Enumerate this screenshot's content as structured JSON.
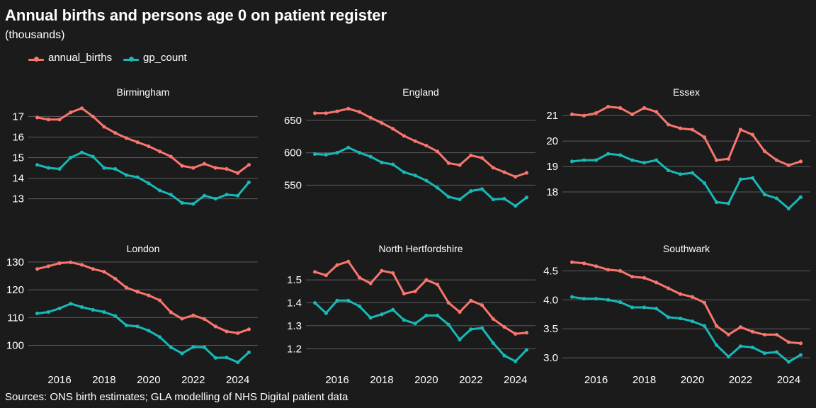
{
  "header": {
    "title": "Annual births and persons age 0 on patient register",
    "subtitle": "(thousands)"
  },
  "source": "Sources: ONS birth estimates; GLA modelling of NHS Digital patient data",
  "colors": {
    "background": "#1b1b1b",
    "annual_births": "#f8766d",
    "gp_count": "#19b8b8",
    "grid": "#5c5c5c",
    "text": "#ffffff"
  },
  "legend": [
    {
      "label": "annual_births",
      "color": "#f8766d"
    },
    {
      "label": "gp_count",
      "color": "#19b8b8"
    }
  ],
  "chart_data": [
    {
      "type": "line",
      "panel": "Birmingham",
      "x": [
        2015,
        2015.5,
        2016,
        2016.5,
        2017,
        2017.5,
        2018,
        2018.5,
        2019,
        2019.5,
        2020,
        2020.5,
        2021,
        2021.5,
        2022,
        2022.5,
        2023,
        2023.5,
        2024,
        2024.5
      ],
      "series": [
        {
          "name": "annual_births",
          "values": [
            16.95,
            16.85,
            16.85,
            17.2,
            17.4,
            17.0,
            16.5,
            16.2,
            15.95,
            15.75,
            15.55,
            15.3,
            15.05,
            14.6,
            14.5,
            14.7,
            14.5,
            14.45,
            14.25,
            14.65
          ]
        },
        {
          "name": "gp_count",
          "values": [
            14.65,
            14.5,
            14.45,
            15.0,
            15.25,
            15.05,
            14.5,
            14.45,
            14.15,
            14.05,
            13.75,
            13.4,
            13.2,
            12.8,
            12.75,
            13.15,
            13.0,
            13.2,
            13.15,
            13.8
          ]
        }
      ],
      "yticks": [
        13,
        14,
        15,
        16,
        17
      ],
      "ylim": [
        12.4,
        17.6
      ],
      "show_xticks": false
    },
    {
      "type": "line",
      "panel": "England",
      "x": [
        2015,
        2015.5,
        2016,
        2016.5,
        2017,
        2017.5,
        2018,
        2018.5,
        2019,
        2019.5,
        2020,
        2020.5,
        2021,
        2021.5,
        2022,
        2022.5,
        2023,
        2023.5,
        2024,
        2024.5
      ],
      "series": [
        {
          "name": "annual_births",
          "values": [
            661,
            661,
            664,
            668,
            663,
            654,
            646,
            637,
            626,
            618,
            611,
            602,
            584,
            581,
            596,
            592,
            577,
            570,
            563,
            569
          ]
        },
        {
          "name": "gp_count",
          "values": [
            598,
            597,
            600,
            608,
            600,
            594,
            585,
            582,
            570,
            565,
            557,
            546,
            532,
            528,
            541,
            544,
            528,
            529,
            518,
            531
          ]
        }
      ],
      "yticks": [
        550,
        600,
        650
      ],
      "ylim": [
        510,
        675
      ],
      "show_xticks": false
    },
    {
      "type": "line",
      "panel": "Essex",
      "x": [
        2015,
        2015.5,
        2016,
        2016.5,
        2017,
        2017.5,
        2018,
        2018.5,
        2019,
        2019.5,
        2020,
        2020.5,
        2021,
        2021.5,
        2022,
        2022.5,
        2023,
        2023.5,
        2024,
        2024.5
      ],
      "series": [
        {
          "name": "annual_births",
          "values": [
            21.05,
            21.0,
            21.1,
            21.35,
            21.3,
            21.05,
            21.3,
            21.15,
            20.65,
            20.5,
            20.45,
            20.15,
            19.25,
            19.3,
            20.45,
            20.25,
            19.6,
            19.25,
            19.05,
            19.2
          ]
        },
        {
          "name": "gp_count",
          "values": [
            19.2,
            19.25,
            19.25,
            19.5,
            19.45,
            19.25,
            19.15,
            19.25,
            18.85,
            18.7,
            18.75,
            18.35,
            17.6,
            17.55,
            18.5,
            18.55,
            17.9,
            17.75,
            17.35,
            17.8
          ]
        }
      ],
      "yticks": [
        18,
        19,
        20,
        21
      ],
      "ylim": [
        17.25,
        21.45
      ],
      "show_xticks": false
    },
    {
      "type": "line",
      "panel": "London",
      "x": [
        2015,
        2015.5,
        2016,
        2016.5,
        2017,
        2017.5,
        2018,
        2018.5,
        2019,
        2019.5,
        2020,
        2020.5,
        2021,
        2021.5,
        2022,
        2022.5,
        2023,
        2023.5,
        2024,
        2024.5
      ],
      "series": [
        {
          "name": "annual_births",
          "values": [
            127.5,
            128.5,
            129.6,
            129.9,
            129.0,
            127.5,
            126.5,
            124.0,
            120.8,
            119.3,
            118.0,
            116.2,
            111.9,
            109.6,
            110.8,
            109.5,
            106.8,
            105.0,
            104.4,
            105.8
          ]
        },
        {
          "name": "gp_count",
          "values": [
            111.5,
            112.0,
            113.3,
            115.0,
            113.8,
            112.8,
            112.0,
            110.6,
            107.2,
            106.8,
            105.3,
            103.0,
            99.3,
            97.1,
            99.4,
            99.3,
            95.5,
            95.6,
            93.9,
            97.5
          ]
        }
      ],
      "yticks": [
        100,
        110,
        120,
        130
      ],
      "ylim": [
        93,
        131
      ],
      "show_xticks": true
    },
    {
      "type": "line",
      "panel": "North Hertfordshire",
      "x": [
        2015,
        2015.5,
        2016,
        2016.5,
        2017,
        2017.5,
        2018,
        2018.5,
        2019,
        2019.5,
        2020,
        2020.5,
        2021,
        2021.5,
        2022,
        2022.5,
        2023,
        2023.5,
        2024,
        2024.5
      ],
      "series": [
        {
          "name": "annual_births",
          "values": [
            1.535,
            1.52,
            1.565,
            1.58,
            1.51,
            1.485,
            1.54,
            1.53,
            1.44,
            1.45,
            1.5,
            1.48,
            1.4,
            1.36,
            1.41,
            1.39,
            1.33,
            1.295,
            1.265,
            1.27
          ]
        },
        {
          "name": "gp_count",
          "values": [
            1.4,
            1.355,
            1.41,
            1.41,
            1.385,
            1.335,
            1.35,
            1.37,
            1.325,
            1.31,
            1.345,
            1.345,
            1.305,
            1.24,
            1.285,
            1.29,
            1.225,
            1.17,
            1.145,
            1.195
          ]
        }
      ],
      "yticks": [
        1.2,
        1.3,
        1.4,
        1.5
      ],
      "ylim": [
        1.13,
        1.59
      ],
      "show_xticks": true
    },
    {
      "type": "line",
      "panel": "Southwark",
      "x": [
        2015,
        2015.5,
        2016,
        2016.5,
        2017,
        2017.5,
        2018,
        2018.5,
        2019,
        2019.5,
        2020,
        2020.5,
        2021,
        2021.5,
        2022,
        2022.5,
        2023,
        2023.5,
        2024,
        2024.5
      ],
      "series": [
        {
          "name": "annual_births",
          "values": [
            4.65,
            4.63,
            4.58,
            4.52,
            4.5,
            4.4,
            4.38,
            4.3,
            4.2,
            4.1,
            4.05,
            3.95,
            3.55,
            3.4,
            3.53,
            3.45,
            3.4,
            3.4,
            3.27,
            3.25
          ]
        },
        {
          "name": "gp_count",
          "values": [
            4.05,
            4.02,
            4.02,
            4.0,
            3.96,
            3.87,
            3.87,
            3.85,
            3.7,
            3.68,
            3.63,
            3.55,
            3.22,
            3.02,
            3.2,
            3.18,
            3.08,
            3.1,
            2.93,
            3.05
          ]
        }
      ],
      "yticks": [
        3.0,
        3.5,
        4.0,
        4.5
      ],
      "ylim": [
        2.88,
        4.7
      ],
      "show_xticks": true
    }
  ],
  "xticks": [
    2016,
    2018,
    2020,
    2022,
    2024
  ]
}
